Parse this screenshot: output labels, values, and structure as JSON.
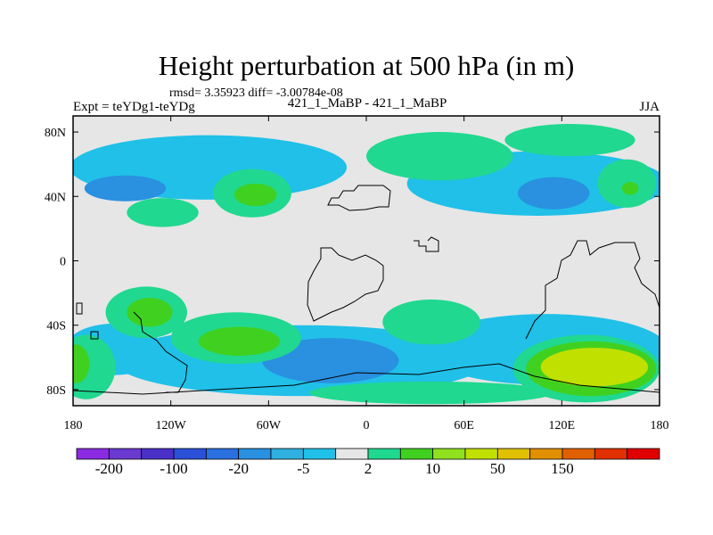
{
  "chart_data": {
    "type": "heatmap",
    "title": "Height perturbation at 500 hPa (in m)",
    "subtitle": "rmsd= 3.35923 diff= -3.00784e-08",
    "left_label": "Expt = teYDg1-teYDg",
    "center_label": "421_1_MaBP - 421_1_MaBP",
    "right_label": "JJA",
    "x_range": [
      -180,
      180
    ],
    "y_range": [
      -90,
      90
    ],
    "x_ticks": [
      {
        "value": -180,
        "label": "180"
      },
      {
        "value": -120,
        "label": "120W"
      },
      {
        "value": -60,
        "label": "60W"
      },
      {
        "value": 0,
        "label": "0"
      },
      {
        "value": 60,
        "label": "60E"
      },
      {
        "value": 120,
        "label": "120E"
      },
      {
        "value": 180,
        "label": "180"
      }
    ],
    "y_ticks": [
      {
        "value": 80,
        "label": "80N"
      },
      {
        "value": 40,
        "label": "40N"
      },
      {
        "value": 0,
        "label": "0"
      },
      {
        "value": -40,
        "label": "40S"
      },
      {
        "value": -80,
        "label": "80S"
      }
    ],
    "colorbar": {
      "colors": [
        "#8a2be2",
        "#6a3ad0",
        "#4b30c8",
        "#2a50d8",
        "#2a70e0",
        "#2a90e0",
        "#30b0e0",
        "#20c0e8",
        "#e6e6e6",
        "#20d890",
        "#40d020",
        "#90e020",
        "#c0e000",
        "#e0c000",
        "#e09000",
        "#e06000",
        "#e03000",
        "#e00000"
      ],
      "label_entries": [
        {
          "index": 1,
          "label": "-200"
        },
        {
          "index": 3,
          "label": "-100"
        },
        {
          "index": 5,
          "label": "-20"
        },
        {
          "index": 7,
          "label": "-5"
        },
        {
          "index": 9,
          "label": "2"
        },
        {
          "index": 11,
          "label": "10"
        },
        {
          "index": 13,
          "label": "50"
        },
        {
          "index": 15,
          "label": "150"
        }
      ]
    },
    "regions": [
      {
        "level": -5,
        "lon": -97,
        "lat": 58,
        "rlon": 85,
        "rlat": 20
      },
      {
        "level": -5,
        "lon": 105,
        "lat": 48,
        "rlon": 80,
        "rlat": 20
      },
      {
        "level": -5,
        "lon": -40,
        "lat": -62,
        "rlon": 115,
        "rlat": 22
      },
      {
        "level": -5,
        "lon": 110,
        "lat": -55,
        "rlon": 75,
        "rlat": 22
      },
      {
        "level": -5,
        "lon": -155,
        "lat": -55,
        "rlon": 30,
        "rlat": 16
      },
      {
        "level": -20,
        "lon": -148,
        "lat": 45,
        "rlon": 25,
        "rlat": 8
      },
      {
        "level": -20,
        "lon": -22,
        "lat": -62,
        "rlon": 42,
        "rlat": 14
      },
      {
        "level": -20,
        "lon": 115,
        "lat": 42,
        "rlon": 22,
        "rlat": 10
      },
      {
        "level": 2,
        "lon": -70,
        "lat": 42,
        "rlon": 24,
        "rlat": 15
      },
      {
        "level": 10,
        "lon": -68,
        "lat": 41,
        "rlon": 13,
        "rlat": 7
      },
      {
        "level": 2,
        "lon": -125,
        "lat": 30,
        "rlon": 22,
        "rlat": 9
      },
      {
        "level": 2,
        "lon": 45,
        "lat": 65,
        "rlon": 45,
        "rlat": 15
      },
      {
        "level": 2,
        "lon": 125,
        "lat": 75,
        "rlon": 40,
        "rlat": 10
      },
      {
        "level": 2,
        "lon": 160,
        "lat": 48,
        "rlon": 18,
        "rlat": 15
      },
      {
        "level": 10,
        "lon": 162,
        "lat": 45,
        "rlon": 5,
        "rlat": 4
      },
      {
        "level": 2,
        "lon": -135,
        "lat": -32,
        "rlon": 25,
        "rlat": 16
      },
      {
        "level": 10,
        "lon": -133,
        "lat": -32,
        "rlon": 14,
        "rlat": 9
      },
      {
        "level": 2,
        "lon": -80,
        "lat": -48,
        "rlon": 40,
        "rlat": 16
      },
      {
        "level": 10,
        "lon": -78,
        "lat": -50,
        "rlon": 25,
        "rlat": 9
      },
      {
        "level": 2,
        "lon": 40,
        "lat": -38,
        "rlon": 30,
        "rlat": 14
      },
      {
        "level": 2,
        "lon": 40,
        "lat": -82,
        "rlon": 75,
        "rlat": 7
      },
      {
        "level": 2,
        "lon": -172,
        "lat": -66,
        "rlon": 18,
        "rlat": 20
      },
      {
        "level": 10,
        "lon": -178,
        "lat": -64,
        "rlon": 8,
        "rlat": 12
      },
      {
        "level": 2,
        "lon": 135,
        "lat": -67,
        "rlon": 45,
        "rlat": 21
      },
      {
        "level": 10,
        "lon": 138,
        "lat": -67,
        "rlon": 40,
        "rlat": 17
      },
      {
        "level": 50,
        "lon": 140,
        "lat": -66,
        "rlon": 33,
        "rlat": 12
      }
    ]
  }
}
